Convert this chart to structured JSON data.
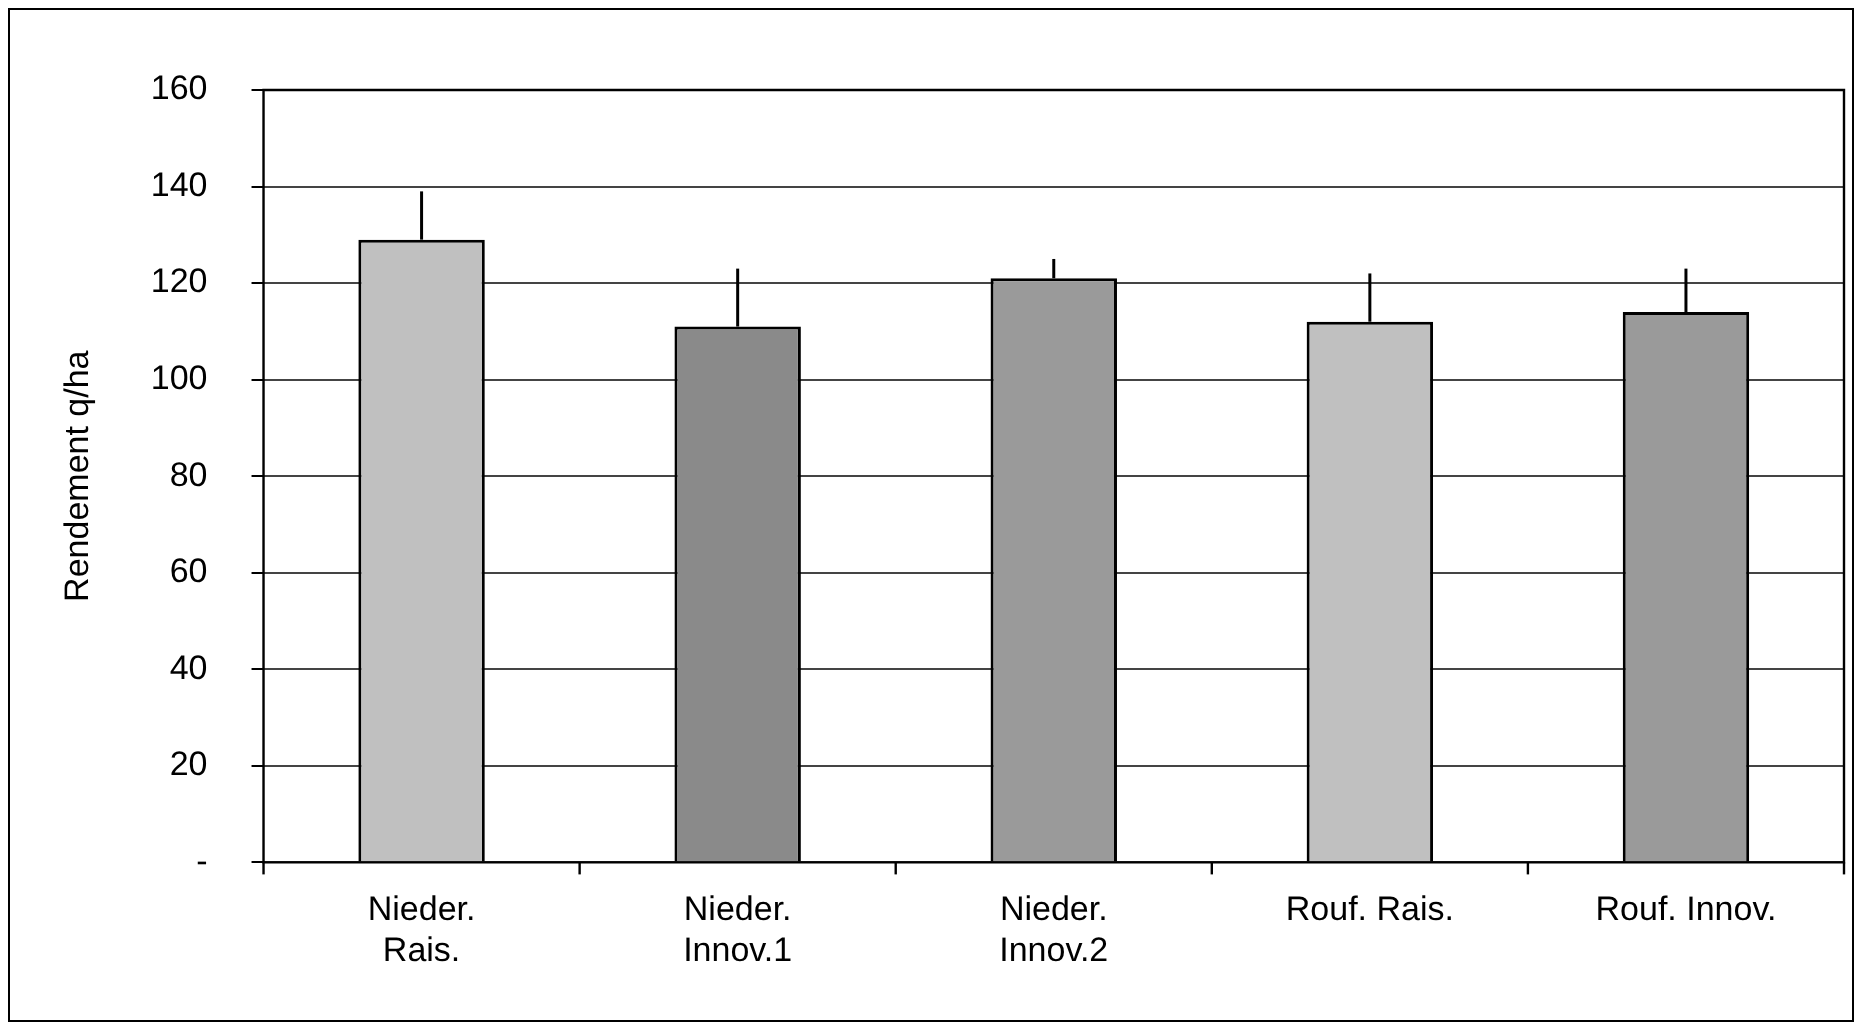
{
  "chart_data": {
    "type": "bar",
    "ylabel": "Rendement q/ha",
    "categories": [
      "Nieder.\nRais.",
      "Nieder.\nInnov.1",
      "Nieder.\nInnov.2",
      "Rouf. Rais.",
      "Rouf. Innov."
    ],
    "values": [
      129,
      111,
      121,
      112,
      114
    ],
    "colors": [
      "#c0c0c0",
      "#8a8a8a",
      "#9a9a9a",
      "#c0c0c0",
      "#9a9a9a"
    ],
    "errors": [
      [
        129,
        139
      ],
      [
        111,
        123
      ],
      [
        121,
        125
      ],
      [
        112,
        122
      ],
      [
        114,
        123
      ]
    ],
    "ylim": [
      0,
      160
    ],
    "yticks": [
      {
        "value": 0,
        "label": "-"
      },
      20,
      40,
      60,
      80,
      100,
      120,
      140,
      160
    ],
    "grid": "y"
  }
}
